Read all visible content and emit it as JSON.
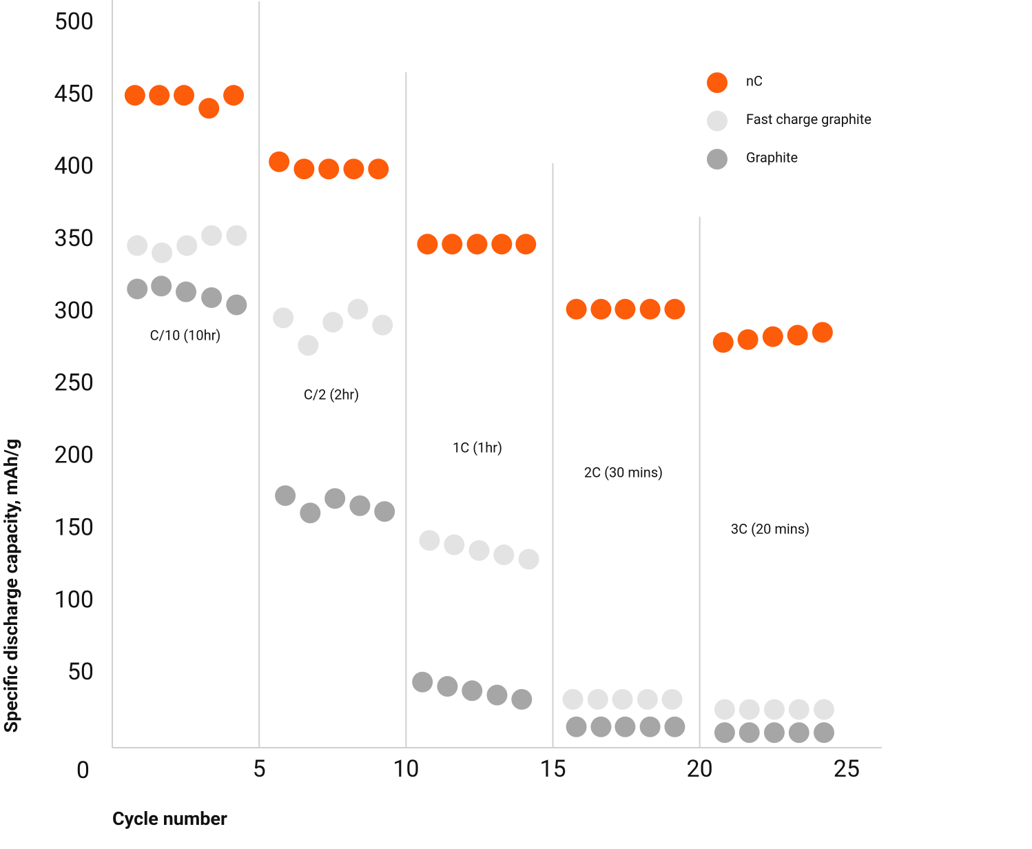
{
  "chart_data": {
    "type": "scatter",
    "y_label": "Specific discharge capacity, mAh/g",
    "x_label": "Cycle number",
    "xlim": [
      0,
      26.2
    ],
    "ylim": [
      0,
      515
    ],
    "xticks": [
      5,
      10,
      15,
      20,
      25
    ],
    "yticks": [
      0,
      50,
      100,
      150,
      200,
      250,
      300,
      350,
      400,
      450,
      500
    ],
    "dividers": [
      {
        "x": 5,
        "ymax": 515
      },
      {
        "x": 10,
        "ymax": 466
      },
      {
        "x": 15,
        "ymax": 403
      },
      {
        "x": 20,
        "ymax": 366
      }
    ],
    "annotations": [
      "C/10 (10hr)",
      "C/2 (2hr)",
      "1C (1hr)",
      "2C (30 mins)",
      "3C (20 mins)"
    ],
    "legend_position": "upper right",
    "series": [
      {
        "name": "nC",
        "color": "#fd5c0a",
        "x": [
          0.77,
          1.6,
          2.44,
          3.29,
          4.13,
          5.68,
          6.53,
          7.37,
          8.22,
          9.06,
          10.73,
          11.57,
          12.42,
          13.26,
          14.08,
          15.8,
          16.64,
          17.46,
          18.31,
          19.15,
          20.8,
          21.64,
          22.49,
          23.33,
          24.18
        ],
        "values": [
          450,
          450,
          450,
          441,
          450,
          404,
          399,
          399,
          399,
          399,
          347,
          347,
          347,
          347,
          347,
          302,
          302,
          302,
          302,
          302,
          279,
          281,
          283,
          284,
          286
        ]
      },
      {
        "name": "Fast charge graphite",
        "color": "#e3e3e3",
        "x": [
          0.85,
          1.69,
          2.54,
          3.38,
          4.23,
          5.82,
          6.67,
          7.51,
          8.36,
          9.2,
          10.8,
          11.64,
          12.49,
          13.33,
          14.18,
          15.68,
          16.53,
          17.37,
          18.22,
          19.06,
          20.85,
          21.69,
          22.54,
          23.38,
          24.23
        ],
        "values": [
          346,
          341,
          346,
          353,
          353,
          296,
          277,
          293,
          302,
          291,
          142,
          139,
          135,
          132,
          129,
          32,
          32,
          32,
          32,
          32,
          25,
          25,
          25,
          25,
          25
        ]
      },
      {
        "name": "Graphite",
        "color": "#a6a6a6",
        "x": [
          0.85,
          1.67,
          2.51,
          3.38,
          4.23,
          5.89,
          6.74,
          7.58,
          8.43,
          9.27,
          10.56,
          11.41,
          12.25,
          13.1,
          13.94,
          15.8,
          16.64,
          17.46,
          18.31,
          19.15,
          20.85,
          21.69,
          22.54,
          23.38,
          24.23
        ],
        "values": [
          316,
          318,
          314,
          310,
          305,
          173,
          161,
          171,
          166,
          162,
          44,
          41,
          38,
          35,
          32,
          13,
          13,
          13,
          13,
          13,
          9,
          9,
          9,
          9,
          9
        ]
      }
    ]
  }
}
